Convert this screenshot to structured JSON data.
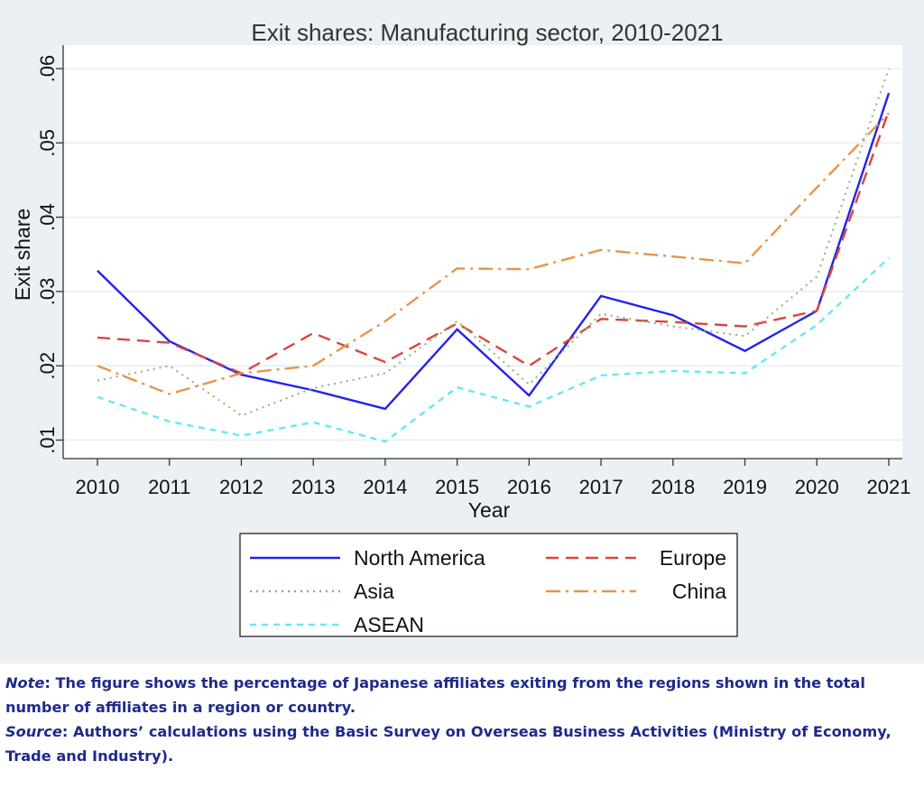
{
  "chart_data": {
    "type": "line",
    "title": "Exit shares: Manufacturing sector, 2010-2021",
    "xlabel": "Year",
    "ylabel": "Exit share",
    "x": [
      2010,
      2011,
      2012,
      2013,
      2014,
      2015,
      2016,
      2017,
      2018,
      2019,
      2020,
      2021
    ],
    "yticks": [
      ".01",
      ".02",
      ".03",
      ".04",
      ".05",
      ".06"
    ],
    "ylim": [
      0.0075,
      0.0625
    ],
    "grid": true,
    "legend_position": "bottom",
    "series": [
      {
        "name": "North America",
        "color": "#2222ee",
        "style": "solid",
        "values": [
          0.0328,
          0.0233,
          0.0188,
          0.0167,
          0.0142,
          0.0249,
          0.016,
          0.0294,
          0.0268,
          0.022,
          0.0274,
          0.0567
        ]
      },
      {
        "name": "Europe",
        "color": "#d9473c",
        "style": "dash",
        "values": [
          0.0238,
          0.0231,
          0.019,
          0.0244,
          0.0205,
          0.0257,
          0.02,
          0.0263,
          0.0259,
          0.0253,
          0.0274,
          0.0543
        ]
      },
      {
        "name": "Asia",
        "color": "#8fb07a",
        "style": "dot",
        "values": [
          0.018,
          0.02,
          0.0133,
          0.017,
          0.019,
          0.026,
          0.0175,
          0.027,
          0.0253,
          0.024,
          0.032,
          0.06
        ]
      },
      {
        "name": "China",
        "color": "#e8944a",
        "style": "dashdot",
        "values": [
          0.02,
          0.0162,
          0.019,
          0.02,
          0.026,
          0.0331,
          0.033,
          0.0356,
          0.0347,
          0.0338,
          0.044,
          0.054
        ]
      },
      {
        "name": "ASEAN",
        "color": "#66e8f5",
        "style": "shortdash",
        "values": [
          0.0158,
          0.0125,
          0.0106,
          0.0124,
          0.0098,
          0.0171,
          0.0145,
          0.0187,
          0.0193,
          0.019,
          0.0255,
          0.0345
        ]
      }
    ]
  },
  "notes": {
    "note_label": "Note",
    "note_text": ": The figure shows the percentage of Japanese affiliates exiting from the regions shown in the total number of affiliates in a region or country.",
    "source_label": "Source",
    "source_text": ": Authors’ calculations using the Basic Survey on Overseas Business Activities (Ministry of Economy, Trade and Industry)."
  }
}
